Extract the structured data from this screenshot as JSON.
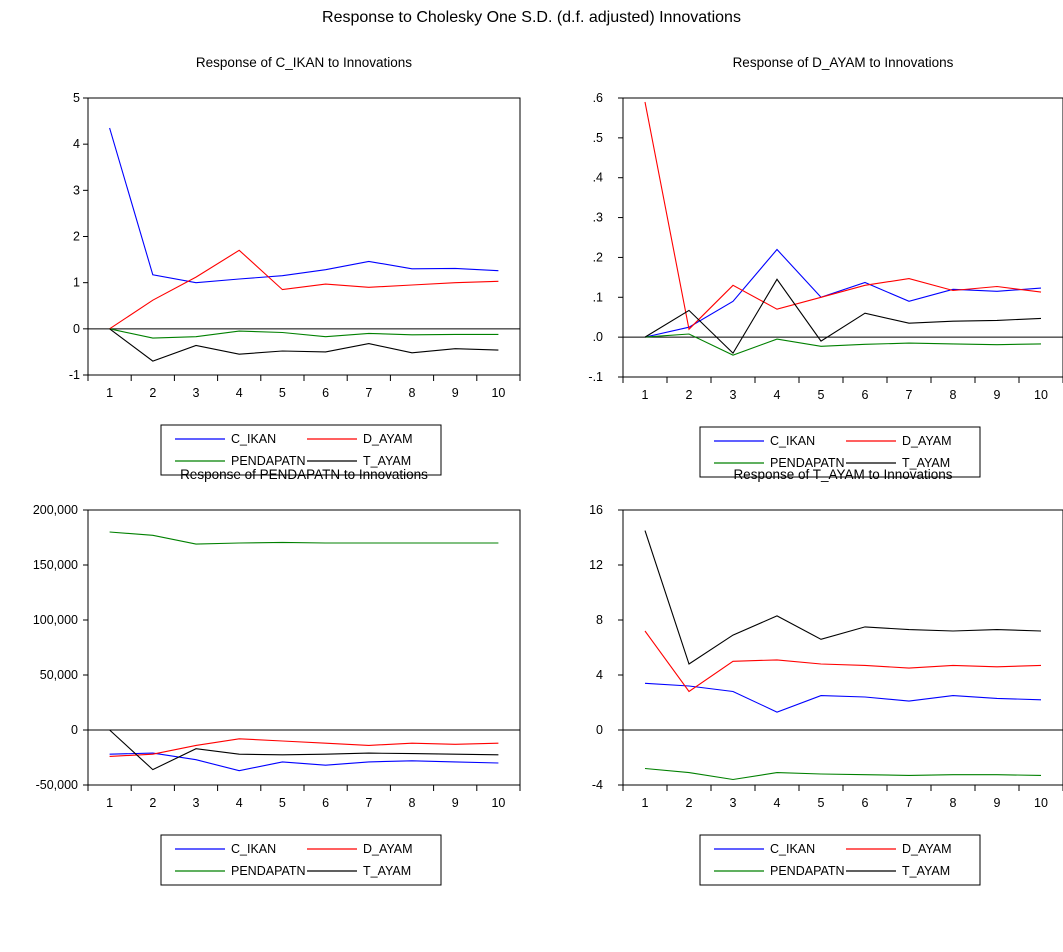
{
  "title": "Response to Cholesky One S.D. (d.f. adjusted) Innovations",
  "colors": {
    "C_IKAN": "#0000ff",
    "D_AYAM": "#ff0000",
    "PENDAPATN": "#008000",
    "T_AYAM": "#000000"
  },
  "chart_data": [
    {
      "type": "line",
      "title": "Response of C_IKAN to Innovations",
      "x": [
        1,
        2,
        3,
        4,
        5,
        6,
        7,
        8,
        9,
        10
      ],
      "ylim": [
        -1,
        5
      ],
      "yticks": [
        -1,
        0,
        1,
        2,
        3,
        4,
        5
      ],
      "ytick_labels": [
        "-1",
        "0",
        "1",
        "2",
        "3",
        "4",
        "5"
      ],
      "legend": "bottom-center",
      "series": [
        {
          "name": "C_IKAN",
          "values": [
            4.35,
            1.17,
            1.0,
            1.08,
            1.15,
            1.28,
            1.46,
            1.3,
            1.31,
            1.26
          ]
        },
        {
          "name": "D_AYAM",
          "values": [
            0.0,
            0.62,
            1.12,
            1.7,
            0.85,
            0.97,
            0.9,
            0.95,
            1.0,
            1.03
          ]
        },
        {
          "name": "PENDAPATN",
          "values": [
            0.0,
            -0.2,
            -0.17,
            -0.05,
            -0.08,
            -0.17,
            -0.1,
            -0.13,
            -0.12,
            -0.12
          ]
        },
        {
          "name": "T_AYAM",
          "values": [
            0.0,
            -0.7,
            -0.36,
            -0.55,
            -0.48,
            -0.5,
            -0.32,
            -0.52,
            -0.43,
            -0.46
          ]
        }
      ]
    },
    {
      "type": "line",
      "title": "Response of D_AYAM to Innovations",
      "x": [
        1,
        2,
        3,
        4,
        5,
        6,
        7,
        8,
        9,
        10
      ],
      "ylim": [
        -0.1,
        0.6
      ],
      "yticks": [
        -0.1,
        0,
        0.1,
        0.2,
        0.3,
        0.4,
        0.5,
        0.6
      ],
      "ytick_labels": [
        "-.1",
        ".0",
        ".1",
        ".2",
        ".3",
        ".4",
        ".5",
        ".6"
      ],
      "legend": "bottom-center",
      "series": [
        {
          "name": "C_IKAN",
          "values": [
            0.0,
            0.025,
            0.09,
            0.22,
            0.1,
            0.137,
            0.09,
            0.12,
            0.115,
            0.123
          ]
        },
        {
          "name": "D_AYAM",
          "values": [
            0.59,
            0.02,
            0.13,
            0.07,
            0.1,
            0.13,
            0.147,
            0.117,
            0.127,
            0.113
          ]
        },
        {
          "name": "PENDAPATN",
          "values": [
            0.0,
            0.008,
            -0.045,
            -0.005,
            -0.023,
            -0.018,
            -0.015,
            -0.017,
            -0.019,
            -0.017
          ]
        },
        {
          "name": "T_AYAM",
          "values": [
            0.0,
            0.067,
            -0.04,
            0.145,
            -0.01,
            0.06,
            0.035,
            0.04,
            0.042,
            0.047
          ]
        }
      ]
    },
    {
      "type": "line",
      "title": "Response of PENDAPATN to Innovations",
      "x": [
        1,
        2,
        3,
        4,
        5,
        6,
        7,
        8,
        9,
        10
      ],
      "ylim": [
        -50000,
        200000
      ],
      "yticks": [
        -50000,
        0,
        50000,
        100000,
        150000,
        200000
      ],
      "ytick_labels": [
        "-50,000",
        "0",
        "50,000",
        "100,000",
        "150,000",
        "200,000"
      ],
      "legend": "bottom-center",
      "series": [
        {
          "name": "C_IKAN",
          "values": [
            -22000,
            -21000,
            -27000,
            -37000,
            -29000,
            -32000,
            -29000,
            -28000,
            -29000,
            -30000
          ]
        },
        {
          "name": "D_AYAM",
          "values": [
            -24000,
            -22000,
            -14000,
            -8000,
            -10000,
            -12000,
            -14000,
            -12000,
            -13000,
            -12000
          ]
        },
        {
          "name": "PENDAPATN",
          "values": [
            180000,
            177000,
            169000,
            170000,
            170500,
            170000,
            170000,
            170000,
            170000,
            170000
          ]
        },
        {
          "name": "T_AYAM",
          "values": [
            0,
            -36000,
            -17000,
            -22000,
            -22500,
            -22000,
            -21000,
            -21500,
            -22000,
            -22500
          ]
        }
      ]
    },
    {
      "type": "line",
      "title": "Response of T_AYAM to Innovations",
      "x": [
        1,
        2,
        3,
        4,
        5,
        6,
        7,
        8,
        9,
        10
      ],
      "ylim": [
        -4,
        16
      ],
      "yticks": [
        -4,
        0,
        4,
        8,
        12,
        16
      ],
      "ytick_labels": [
        "-4",
        "0",
        "4",
        "8",
        "12",
        "16"
      ],
      "legend": "bottom-center",
      "series": [
        {
          "name": "C_IKAN",
          "values": [
            3.4,
            3.2,
            2.8,
            1.3,
            2.5,
            2.4,
            2.1,
            2.5,
            2.3,
            2.2
          ]
        },
        {
          "name": "D_AYAM",
          "values": [
            7.2,
            2.8,
            5.0,
            5.1,
            4.8,
            4.7,
            4.5,
            4.7,
            4.6,
            4.7
          ]
        },
        {
          "name": "PENDAPATN",
          "values": [
            -2.8,
            -3.1,
            -3.6,
            -3.1,
            -3.2,
            -3.25,
            -3.3,
            -3.25,
            -3.25,
            -3.3
          ]
        },
        {
          "name": "T_AYAM",
          "values": [
            14.5,
            4.8,
            6.9,
            8.3,
            6.6,
            7.5,
            7.3,
            7.2,
            7.3,
            7.2
          ]
        }
      ]
    }
  ]
}
